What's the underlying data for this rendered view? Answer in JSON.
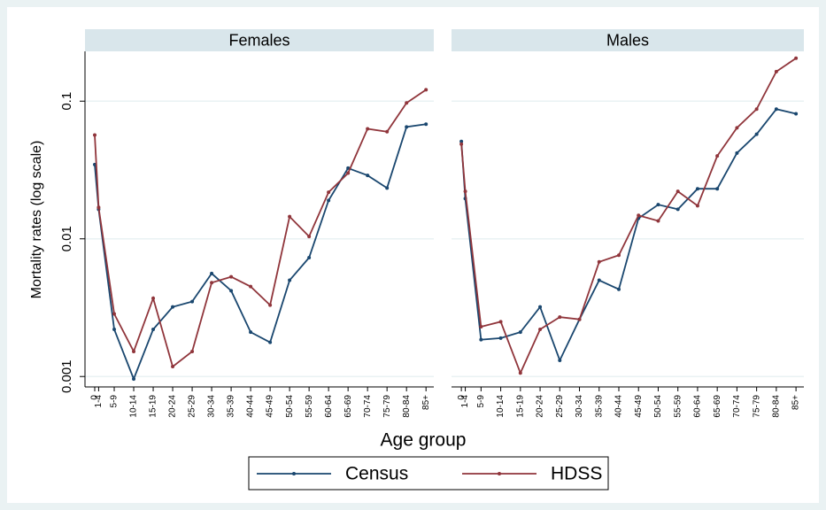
{
  "shared": {
    "ylabel": "Mortality rates (log scale)",
    "xlabel": "Age group"
  },
  "chart_data": [
    {
      "type": "line",
      "title": "Females",
      "log_y": true,
      "grid": true,
      "show_y_tick_labels": true,
      "x": [
        0,
        1,
        5,
        10,
        15,
        20,
        25,
        30,
        35,
        40,
        45,
        50,
        55,
        60,
        65,
        70,
        75,
        80,
        85
      ],
      "xlim": [
        -2.5,
        87
      ],
      "xticks": [
        0,
        {
          "value": 1,
          "label": "1-4"
        },
        {
          "value": 5,
          "label": "5-9"
        },
        {
          "value": 10,
          "label": "10-14"
        },
        {
          "value": 15,
          "label": "15-19"
        },
        {
          "value": 20,
          "label": "20-24"
        },
        {
          "value": 25,
          "label": "25-29"
        },
        {
          "value": 30,
          "label": "30-34"
        },
        {
          "value": 35,
          "label": "35-39"
        },
        {
          "value": 40,
          "label": "40-44"
        },
        {
          "value": 45,
          "label": "45-49"
        },
        {
          "value": 50,
          "label": "50-54"
        },
        {
          "value": 55,
          "label": "55-59"
        },
        {
          "value": 60,
          "label": "60-64"
        },
        {
          "value": 65,
          "label": "65-69"
        },
        {
          "value": 70,
          "label": "70-74"
        },
        {
          "value": 75,
          "label": "75-79"
        },
        {
          "value": 80,
          "label": "80-84"
        },
        {
          "value": 85,
          "label": "85+"
        }
      ],
      "ylim": [
        0.00084,
        0.23
      ],
      "yticks": [
        0.001,
        0.01,
        0.1
      ],
      "series": [
        {
          "name": "Census",
          "color": "#1a476f",
          "values": [
            0.0346,
            0.0164,
            0.0022,
            0.00096,
            0.0022,
            0.0032,
            0.0035,
            0.0056,
            0.0042,
            0.0021,
            0.00177,
            0.005,
            0.0073,
            0.019,
            0.0326,
            0.0289,
            0.0234,
            0.065,
            0.068
          ]
        },
        {
          "name": "HDSS",
          "color": "#90353b",
          "values": [
            0.0567,
            0.0169,
            0.00285,
            0.00152,
            0.0037,
            0.00118,
            0.00152,
            0.0048,
            0.0053,
            0.0045,
            0.0033,
            0.0145,
            0.0104,
            0.0218,
            0.03,
            0.063,
            0.06,
            0.097,
            0.121
          ]
        }
      ]
    },
    {
      "type": "line",
      "title": "Males",
      "log_y": true,
      "grid": true,
      "show_y_tick_labels": false,
      "x": [
        0,
        1,
        5,
        10,
        15,
        20,
        25,
        30,
        35,
        40,
        45,
        50,
        55,
        60,
        65,
        70,
        75,
        80,
        85
      ],
      "xlim": [
        -2.5,
        87
      ],
      "xticks": [
        0,
        {
          "value": 1,
          "label": "1-4"
        },
        {
          "value": 5,
          "label": "5-9"
        },
        {
          "value": 10,
          "label": "10-14"
        },
        {
          "value": 15,
          "label": "15-19"
        },
        {
          "value": 20,
          "label": "20-24"
        },
        {
          "value": 25,
          "label": "25-29"
        },
        {
          "value": 30,
          "label": "30-34"
        },
        {
          "value": 35,
          "label": "35-39"
        },
        {
          "value": 40,
          "label": "40-44"
        },
        {
          "value": 45,
          "label": "45-49"
        },
        {
          "value": 50,
          "label": "50-54"
        },
        {
          "value": 55,
          "label": "55-59"
        },
        {
          "value": 60,
          "label": "60-64"
        },
        {
          "value": 65,
          "label": "65-69"
        },
        {
          "value": 70,
          "label": "70-74"
        },
        {
          "value": 75,
          "label": "75-79"
        },
        {
          "value": 80,
          "label": "80-84"
        },
        {
          "value": 85,
          "label": "85+"
        }
      ],
      "ylim": [
        0.00084,
        0.23
      ],
      "yticks": [
        0.001,
        0.01,
        0.1
      ],
      "series": [
        {
          "name": "Census",
          "color": "#1a476f",
          "values": [
            0.051,
            0.0196,
            0.00185,
            0.0019,
            0.0021,
            0.0032,
            0.00131,
            0.0026,
            0.005,
            0.0043,
            0.0141,
            0.0177,
            0.0164,
            0.0231,
            0.0231,
            0.042,
            0.0575,
            0.0875,
            0.081
          ]
        },
        {
          "name": "HDSS",
          "color": "#90353b",
          "values": [
            0.0488,
            0.0221,
            0.0023,
            0.0025,
            0.00106,
            0.0022,
            0.0027,
            0.0026,
            0.0068,
            0.0076,
            0.0148,
            0.0135,
            0.0221,
            0.0174,
            0.04,
            0.064,
            0.0875,
            0.164,
            0.205
          ]
        }
      ]
    }
  ]
}
